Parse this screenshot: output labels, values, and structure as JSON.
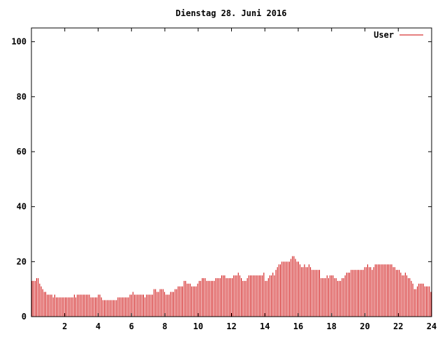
{
  "chart_data": {
    "type": "bar",
    "title": "Dienstag 28. Juni 2016",
    "xlabel": "",
    "ylabel": "",
    "xlim": [
      0,
      24
    ],
    "ylim": [
      0,
      105
    ],
    "x_ticks": [
      2,
      4,
      6,
      8,
      10,
      12,
      14,
      16,
      18,
      20,
      22,
      24
    ],
    "y_ticks": [
      0,
      20,
      40,
      60,
      80,
      100
    ],
    "grid": false,
    "legend_position": "top-right",
    "bar_color": "#cc0000",
    "series": [
      {
        "name": "User",
        "color": "#cc0000",
        "values": [
          13,
          13,
          13,
          14,
          14,
          12,
          11,
          10,
          9,
          9,
          8,
          8,
          8,
          8,
          7,
          8,
          7,
          7,
          7,
          7,
          7,
          7,
          7,
          7,
          7,
          7,
          7,
          7,
          8,
          7,
          8,
          8,
          8,
          8,
          8,
          8,
          8,
          8,
          8,
          7,
          7,
          7,
          7,
          7,
          8,
          8,
          7,
          6,
          6,
          6,
          6,
          6,
          6,
          6,
          6,
          6,
          6,
          7,
          7,
          7,
          7,
          7,
          7,
          7,
          7,
          8,
          8,
          9,
          8,
          8,
          8,
          8,
          8,
          8,
          8,
          7,
          8,
          8,
          8,
          8,
          8,
          10,
          10,
          9,
          9,
          10,
          10,
          10,
          9,
          8,
          8,
          8,
          9,
          9,
          9,
          10,
          10,
          11,
          11,
          11,
          11,
          13,
          13,
          12,
          12,
          12,
          11,
          11,
          11,
          11,
          12,
          13,
          13,
          14,
          14,
          14,
          13,
          13,
          13,
          13,
          13,
          13,
          14,
          14,
          14,
          14,
          15,
          15,
          15,
          14,
          14,
          14,
          14,
          14,
          15,
          15,
          15,
          16,
          15,
          14,
          13,
          13,
          13,
          14,
          15,
          15,
          15,
          15,
          15,
          15,
          15,
          15,
          15,
          15,
          16,
          13,
          13,
          14,
          15,
          15,
          16,
          15,
          17,
          18,
          19,
          19,
          20,
          20,
          20,
          20,
          20,
          20,
          21,
          22,
          22,
          21,
          20,
          20,
          19,
          18,
          18,
          19,
          18,
          18,
          19,
          18,
          17,
          17,
          17,
          17,
          17,
          17,
          14,
          14,
          14,
          14,
          15,
          14,
          15,
          15,
          15,
          14,
          14,
          13,
          13,
          13,
          14,
          14,
          15,
          16,
          16,
          16,
          17,
          17,
          17,
          17,
          17,
          17,
          17,
          17,
          17,
          18,
          18,
          19,
          18,
          18,
          17,
          18,
          19,
          19,
          19,
          19,
          19,
          19,
          19,
          19,
          19,
          19,
          19,
          19,
          18,
          18,
          17,
          17,
          17,
          16,
          15,
          15,
          16,
          15,
          14,
          14,
          13,
          12,
          10,
          10,
          11,
          12,
          12,
          12,
          12,
          11,
          11,
          11,
          11,
          9
        ]
      }
    ]
  }
}
